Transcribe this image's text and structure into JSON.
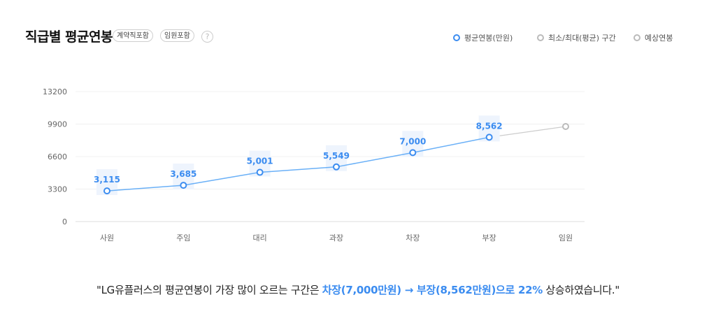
{
  "header": {
    "title": "직급별 평균연봉",
    "chips": [
      "계약직포함",
      "임원포함"
    ],
    "help_icon": "?"
  },
  "legend": [
    {
      "label": "평균연봉(만원)",
      "color": "#3b8cf0"
    },
    {
      "label": "최소/최대(평균) 구간",
      "color": "#bbbbbb"
    },
    {
      "label": "예상연봉",
      "color": "#bbbbbb"
    }
  ],
  "chart_data": {
    "type": "line",
    "title": "직급별 평균연봉",
    "xlabel": "",
    "ylabel": "평균연봉(만원)",
    "ylim": [
      0,
      13200
    ],
    "yticks": [
      0,
      3300,
      6600,
      9900,
      13200
    ],
    "categories": [
      "사원",
      "주임",
      "대리",
      "과장",
      "차장",
      "부장",
      "임원"
    ],
    "series": [
      {
        "name": "평균연봉(만원)",
        "values": [
          3115,
          3685,
          5001,
          5549,
          7000,
          8562,
          null
        ],
        "labels": [
          "3,115",
          "3,685",
          "5,001",
          "5,549",
          "7,000",
          "8,562",
          ""
        ],
        "color": "#3b8cf0"
      },
      {
        "name": "예상연봉",
        "values": [
          null,
          null,
          null,
          null,
          null,
          8562,
          9650
        ],
        "color": "#bbbbbb"
      }
    ],
    "grid": true,
    "legend_position": "top-right"
  },
  "summary": {
    "prefix": "\"LG유플러스의 평균연봉이 가장 많이 오르는 구간은 ",
    "highlight": "차장(7,000만원) → 부장(8,562만원)으로 22%",
    "suffix": " 상승하였습니다.\""
  }
}
